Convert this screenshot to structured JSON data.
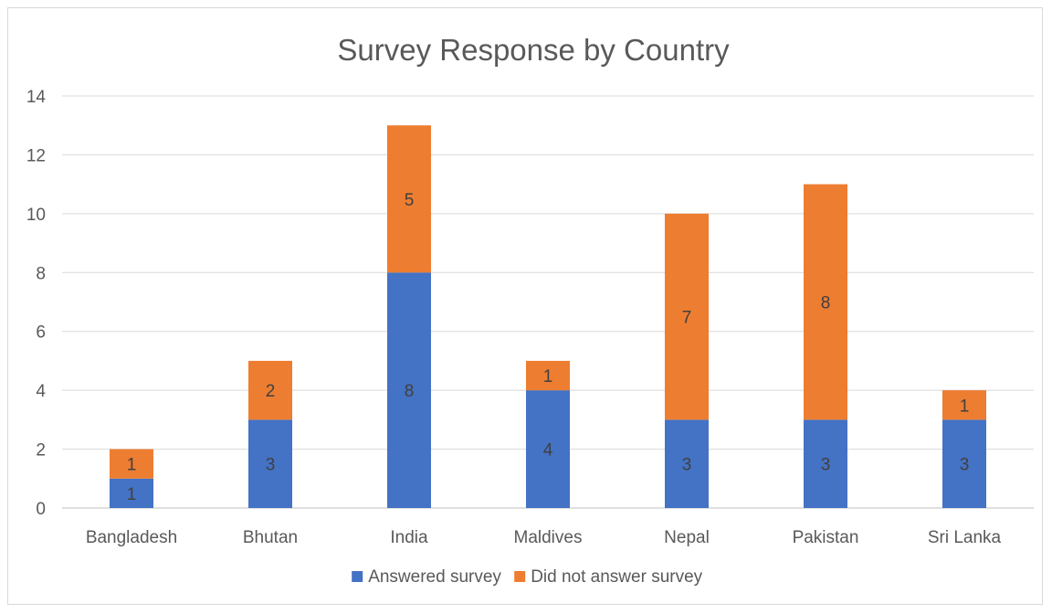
{
  "chart_data": {
    "type": "bar",
    "stacked": true,
    "title": "Survey Response by Country",
    "xlabel": "",
    "ylabel": "",
    "ylim": [
      0,
      14
    ],
    "yticks": [
      0,
      2,
      4,
      6,
      8,
      10,
      12,
      14
    ],
    "grid": true,
    "legend_position": "bottom",
    "categories": [
      "Bangladesh",
      "Bhutan",
      "India",
      "Maldives",
      "Nepal",
      "Pakistan",
      "Sri Lanka"
    ],
    "series": [
      {
        "name": "Answered survey",
        "color": "#4472C4",
        "values": [
          1,
          3,
          8,
          4,
          3,
          3,
          3
        ]
      },
      {
        "name": "Did not answer survey",
        "color": "#ED7D31",
        "values": [
          1,
          2,
          5,
          1,
          7,
          8,
          1
        ]
      }
    ]
  }
}
